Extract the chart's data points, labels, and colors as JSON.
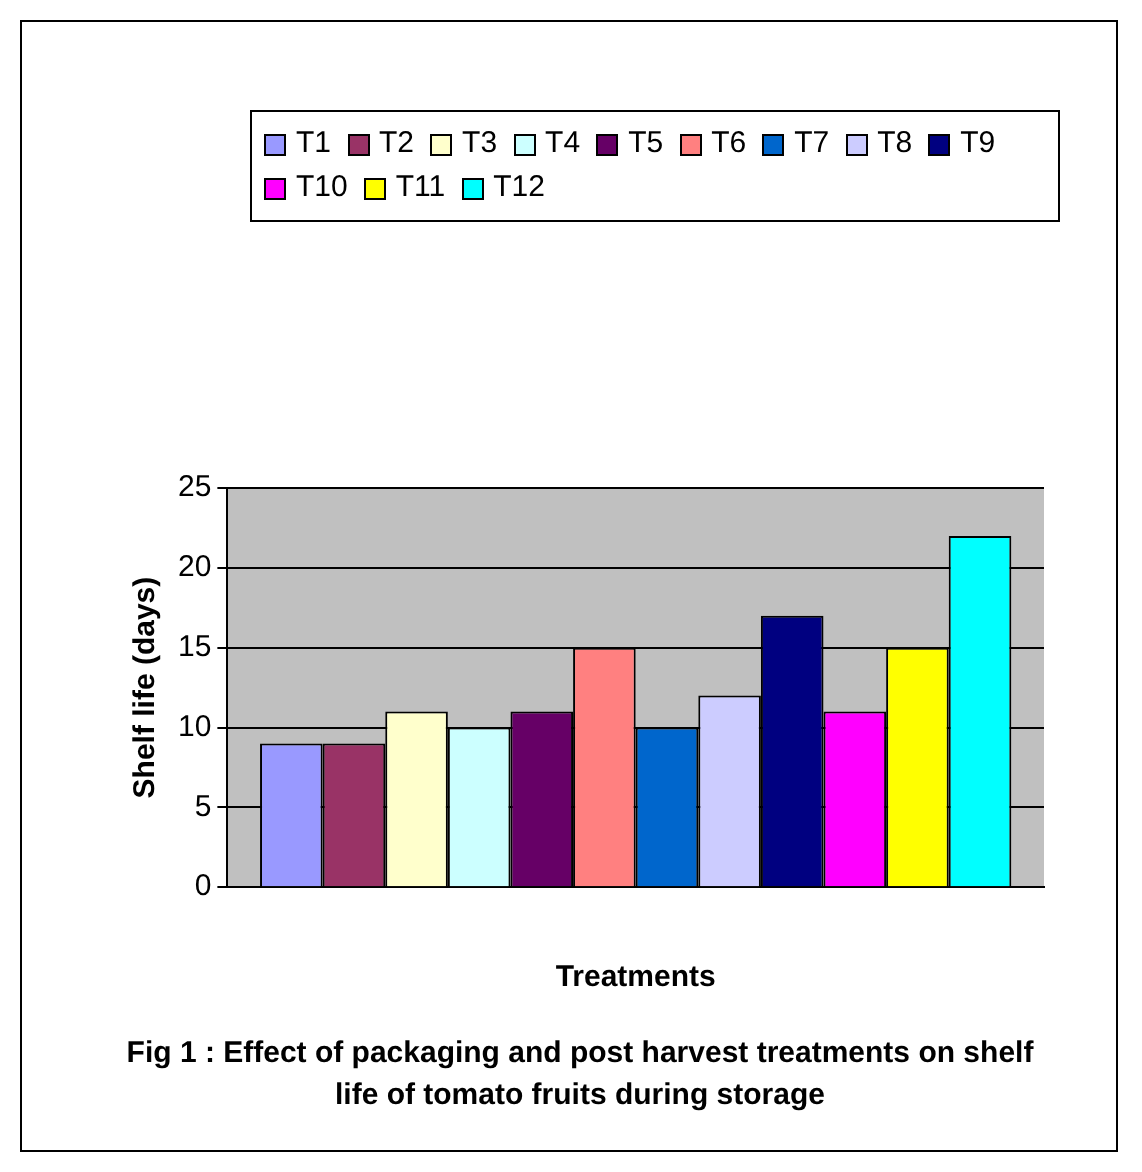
{
  "chart_data": {
    "type": "bar",
    "xlabel": "Treatments",
    "ylabel": "Shelf life (days)",
    "categories": [
      null
    ],
    "series": [
      {
        "name": "T1",
        "color": "#9999ff",
        "values": [
          9
        ]
      },
      {
        "name": "T2",
        "color": "#993366",
        "values": [
          9
        ]
      },
      {
        "name": "T3",
        "color": "#ffffcc",
        "values": [
          11
        ]
      },
      {
        "name": "T4",
        "color": "#ccffff",
        "values": [
          10
        ]
      },
      {
        "name": "T5",
        "color": "#660066",
        "values": [
          11
        ]
      },
      {
        "name": "T6",
        "color": "#ff8080",
        "values": [
          15
        ]
      },
      {
        "name": "T7",
        "color": "#0066cc",
        "values": [
          10
        ]
      },
      {
        "name": "T8",
        "color": "#ccccff",
        "values": [
          12
        ]
      },
      {
        "name": "T9",
        "color": "#000080",
        "values": [
          17
        ]
      },
      {
        "name": "T10",
        "color": "#ff00ff",
        "values": [
          11
        ]
      },
      {
        "name": "T11",
        "color": "#ffff00",
        "values": [
          15
        ]
      },
      {
        "name": "T12",
        "color": "#00ffff",
        "values": [
          22
        ]
      }
    ],
    "ylim": [
      0,
      25
    ],
    "yticks": [
      0,
      5,
      10,
      15,
      20,
      25
    ],
    "grid": "y",
    "legend": "top",
    "annotations": [
      "Fig 1 : Effect of packaging and post harvest treatments on shelf life of tomato fruits during storage"
    ]
  }
}
